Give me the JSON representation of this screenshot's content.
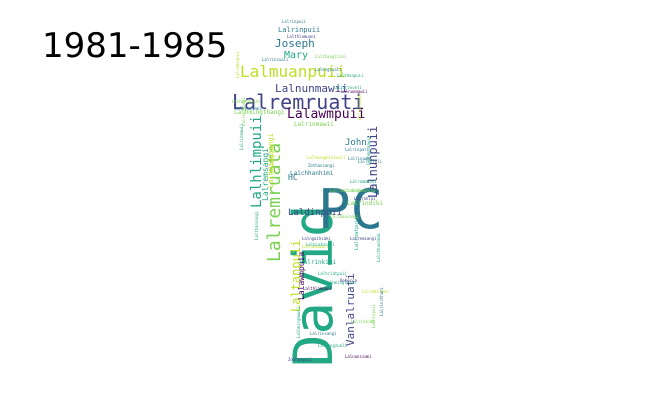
{
  "title": "1981-1985",
  "palette": {
    "dark_purple": "#440154",
    "indigo": "#414487",
    "blue": "#2a788e",
    "teal": "#22a884",
    "green": "#7ad151",
    "yellow": "#bddf26"
  },
  "words": [
    {
      "text": "David",
      "color": "#22a884"
    },
    {
      "text": "PC",
      "color": "#2a788e"
    },
    {
      "text": "Lalremruati",
      "color": "#414487"
    },
    {
      "text": "Lalremruata",
      "color": "#7ad151"
    },
    {
      "text": "Lalmuanpuii",
      "color": "#bddf26"
    },
    {
      "text": "Lalawmpuii",
      "color": "#440154"
    },
    {
      "text": "Lalnunpuii",
      "color": "#414487"
    },
    {
      "text": "Lalhlimpuii",
      "color": "#22a884"
    },
    {
      "text": "Lalnunmawii",
      "color": "#414487"
    },
    {
      "text": "Joseph",
      "color": "#2a788e"
    },
    {
      "text": "Mary",
      "color": "#22a884"
    },
    {
      "text": "Lalrinpuii",
      "color": "#2a788e"
    },
    {
      "text": "Laltanpuii",
      "color": "#bddf26"
    },
    {
      "text": "Vanlalruati",
      "color": "#414487"
    },
    {
      "text": "Lalawmpuia",
      "color": "#440154"
    },
    {
      "text": "Laldinpuii",
      "color": "#414487"
    },
    {
      "text": "John",
      "color": "#2a788e"
    },
    {
      "text": "HC",
      "color": "#2a788e"
    },
    {
      "text": "Laichhanhimi",
      "color": "#2a788e"
    },
    {
      "text": "Lalrindiki",
      "color": "#7ad151"
    },
    {
      "text": "Lalrinmawii",
      "color": "#7ad151"
    },
    {
      "text": "Lalhmingthangi",
      "color": "#7ad151"
    },
    {
      "text": "Lalrinkimi",
      "color": "#22a884"
    },
    {
      "text": "Lalremsangi",
      "color": "#22a884"
    },
    {
      "text": "Lalhmingsangi",
      "color": "#bddf26"
    },
    {
      "text": "Lalrinpuii",
      "color": "#2a788e"
    },
    {
      "text": "Lalthlamuani",
      "color": "#414487"
    },
    {
      "text": "Lalruatpuii",
      "color": "#22a884"
    },
    {
      "text": "Lalchhanhimi",
      "color": "#7ad151"
    },
    {
      "text": "Lalnunmawii",
      "color": "#bddf26"
    },
    {
      "text": "Lalremsiami",
      "color": "#2a788e"
    },
    {
      "text": "Lalhmangaihi",
      "color": "#7ad151"
    },
    {
      "text": "Zothanpuii",
      "color": "#414487"
    },
    {
      "text": "Lalsangzuali",
      "color": "#22a884"
    },
    {
      "text": "Lalrinsangi",
      "color": "#2a788e"
    },
    {
      "text": "Lalthansangi",
      "color": "#22a884"
    },
    {
      "text": "Lalnunsiami",
      "color": "#440154"
    },
    {
      "text": "Lalhmangaihzuali",
      "color": "#bddf26"
    },
    {
      "text": "Lalzarzoveli",
      "color": "#22a884"
    },
    {
      "text": "Lalhlupuii",
      "color": "#7ad151"
    },
    {
      "text": "Lalrinfeli",
      "color": "#2a788e"
    },
    {
      "text": "Lalhriatpuii",
      "color": "#22a884"
    },
    {
      "text": "Lalramzauvi",
      "color": "#bddf26"
    },
    {
      "text": "Lalthansangi",
      "color": "#7ad151"
    },
    {
      "text": "Lalrinmawii",
      "color": "#22a884"
    },
    {
      "text": "Lalngaihsaki",
      "color": "#414487"
    },
    {
      "text": "Lalrammuani",
      "color": "#22a884"
    },
    {
      "text": "Lalrinzuali",
      "color": "#2a788e"
    },
    {
      "text": "Lalrinsiami",
      "color": "#bddf26"
    },
    {
      "text": "Zothansangi",
      "color": "#2a788e"
    },
    {
      "text": "Lalbiakzuali",
      "color": "#22a884"
    },
    {
      "text": "Lalthlamuani",
      "color": "#440154"
    },
    {
      "text": "Lalhmingliani",
      "color": "#22a884"
    },
    {
      "text": "Lalremsangi",
      "color": "#414487"
    },
    {
      "text": "Lalrinkimi",
      "color": "#7ad151"
    },
    {
      "text": "Lalrinpari",
      "color": "#2a788e"
    },
    {
      "text": "Lalhmingmawii",
      "color": "#22a884"
    },
    {
      "text": "Lalramliani",
      "color": "#bddf26"
    },
    {
      "text": "Rebecca",
      "color": "#414487"
    },
    {
      "text": "Lalengzuali",
      "color": "#2a788e"
    },
    {
      "text": "Lalrinthangi",
      "color": "#7ad151"
    },
    {
      "text": "Lalthanpuii",
      "color": "#22a884"
    },
    {
      "text": "Lalrohlui",
      "color": "#414487"
    },
    {
      "text": "Lalremtluangi",
      "color": "#7ad151"
    },
    {
      "text": "Lalrinchhani",
      "color": "#2a788e"
    },
    {
      "text": "Lalchhandami",
      "color": "#22a884"
    },
    {
      "text": "Lalmuanzuali",
      "color": "#bddf26"
    },
    {
      "text": "Lalhmunmawii",
      "color": "#22a884"
    },
    {
      "text": "Lalthangliani",
      "color": "#7ad151"
    },
    {
      "text": "Lalnunmawii",
      "color": "#440154"
    },
    {
      "text": "Lalrinawmi",
      "color": "#2a788e"
    }
  ]
}
